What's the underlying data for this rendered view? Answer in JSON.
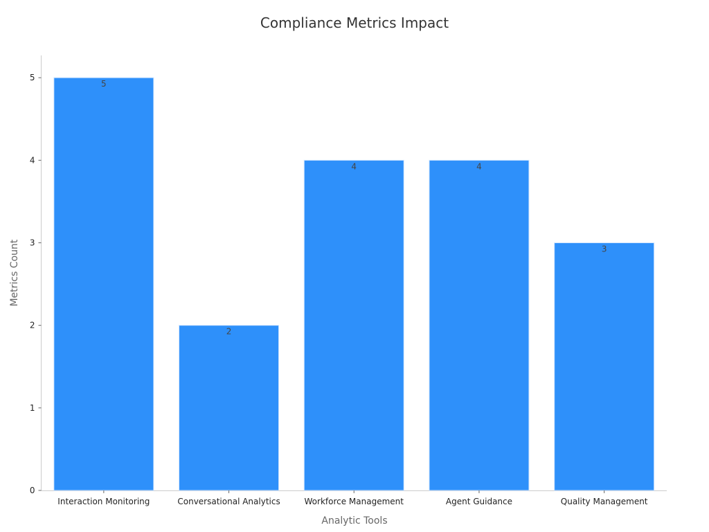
{
  "chart_data": {
    "type": "bar",
    "title": "Compliance Metrics Impact",
    "xlabel": "Analytic Tools",
    "ylabel": "Metrics Count",
    "categories": [
      "Interaction Monitoring",
      "Conversational Analytics",
      "Workforce Management",
      "Agent Guidance",
      "Quality Management"
    ],
    "values": [
      5,
      2,
      4,
      4,
      3
    ],
    "ylim": [
      0,
      5.27
    ],
    "yticks": [
      0,
      1,
      2,
      3,
      4,
      5
    ],
    "bar_color": "#2e90fa",
    "grid": false,
    "legend": "none",
    "data_labels": true
  }
}
